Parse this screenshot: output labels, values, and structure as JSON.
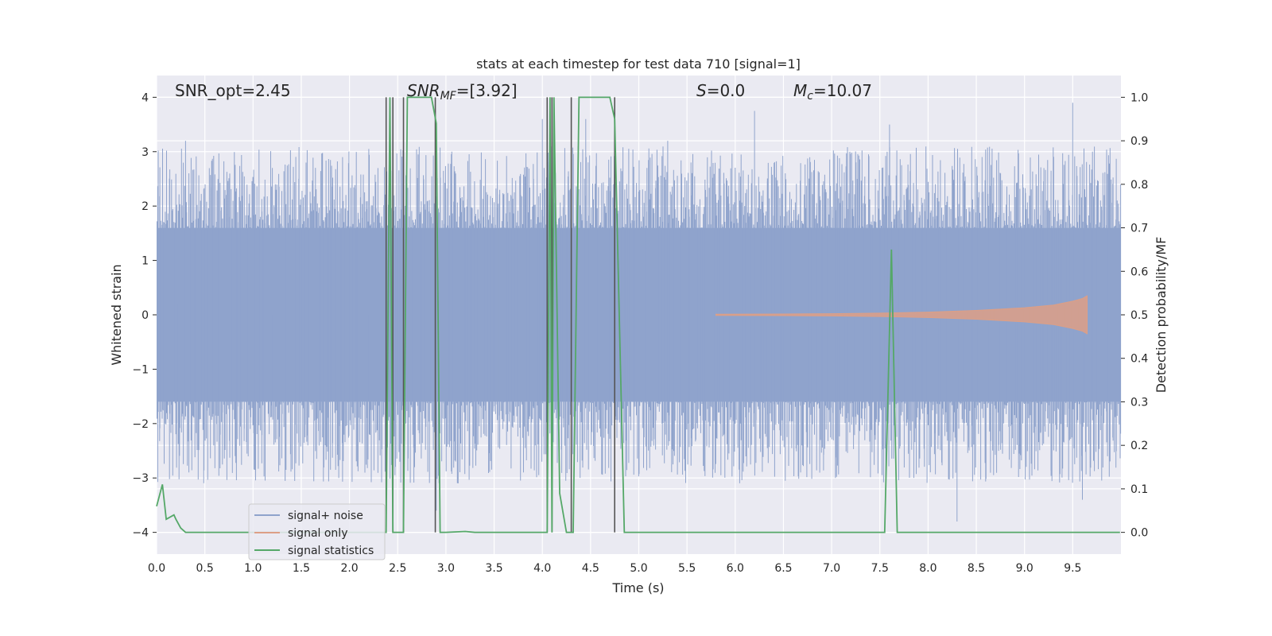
{
  "chart_data": {
    "type": "line",
    "title": "stats at each timestep for test data 710 [signal=1]",
    "xlabel": "Time (s)",
    "ylabel_left": "Whitened strain",
    "ylabel_right": "Detection probability/MF",
    "xlim": [
      0.0,
      10.0
    ],
    "ylim_left": [
      -4.4,
      4.4
    ],
    "ylim_right": [
      -0.05,
      1.05
    ],
    "x_ticks": [
      "0.0",
      "0.5",
      "1.0",
      "1.5",
      "2.0",
      "2.5",
      "3.0",
      "3.5",
      "4.0",
      "4.5",
      "5.0",
      "5.5",
      "6.0",
      "6.5",
      "7.0",
      "7.5",
      "8.0",
      "8.5",
      "9.0",
      "9.5"
    ],
    "y_ticks_left": [
      "−4",
      "−3",
      "−2",
      "−1",
      "0",
      "1",
      "2",
      "3",
      "4"
    ],
    "y_ticks_right": [
      "0.0",
      "0.1",
      "0.2",
      "0.3",
      "0.4",
      "0.5",
      "0.6",
      "0.7",
      "0.8",
      "0.9",
      "1.0"
    ],
    "grid": true,
    "legend_position": "lower-left",
    "annotations": {
      "snr_opt": "SNR_opt=2.45",
      "snr_mf_base": "SNR",
      "snr_mf_sub": "MF",
      "snr_mf_val": "=[3.92]",
      "s_base": "S",
      "s_val": "=0.0",
      "mc_base": "M",
      "mc_sub": "c",
      "mc_val": "=10.07"
    },
    "series": [
      {
        "name": "signal+ noise",
        "color": "#8fa3cc",
        "noise_band": [
          -1.6,
          1.6
        ],
        "notable_peaks": [
          [
            0.3,
            3.2
          ],
          [
            1.2,
            2.7
          ],
          [
            1.55,
            2.8
          ],
          [
            2.2,
            3.05
          ],
          [
            2.9,
            -3.6
          ],
          [
            4.0,
            3.6
          ],
          [
            4.45,
            3.6
          ],
          [
            4.75,
            3.3
          ],
          [
            5.3,
            3.2
          ],
          [
            6.2,
            3.75
          ],
          [
            7.6,
            3.5
          ],
          [
            8.3,
            -3.8
          ],
          [
            9.5,
            3.9
          ],
          [
            9.6,
            -3.4
          ]
        ]
      },
      {
        "name": "signal only",
        "color": "#dd9f86",
        "x": [
          5.8,
          6.5,
          7.0,
          7.5,
          8.0,
          8.5,
          9.0,
          9.3,
          9.5,
          9.6,
          9.65
        ],
        "amplitude": [
          0.01,
          0.015,
          0.02,
          0.03,
          0.05,
          0.08,
          0.13,
          0.18,
          0.25,
          0.3,
          0.35
        ]
      },
      {
        "name": "signal statistics",
        "color": "#55a868",
        "x": [
          0.0,
          0.06,
          0.1,
          0.18,
          0.2,
          0.25,
          0.3,
          0.4,
          1.0,
          2.0,
          2.35,
          2.38,
          2.42,
          2.45,
          2.48,
          2.52,
          2.56,
          2.6,
          2.64,
          2.85,
          2.9,
          2.94,
          3.0,
          3.2,
          3.3,
          4.05,
          4.08,
          4.1,
          4.12,
          4.18,
          4.25,
          4.3,
          4.32,
          4.38,
          4.4,
          4.55,
          4.7,
          4.75,
          4.85,
          4.9,
          7.55,
          7.62,
          7.68,
          7.7,
          9.99
        ],
        "y": [
          0.06,
          0.11,
          0.03,
          0.04,
          0.03,
          0.01,
          0.0,
          0.0,
          0.0,
          0.0,
          0.0,
          0.0,
          1.0,
          0.0,
          0.0,
          0.0,
          0.0,
          1.0,
          1.0,
          1.0,
          0.94,
          0.0,
          0.0,
          0.002,
          0.0,
          0.0,
          1.0,
          0.0,
          1.0,
          0.09,
          0.0,
          0.0,
          0.0,
          1.0,
          1.0,
          1.0,
          1.0,
          0.95,
          0.0,
          0.0,
          0.0,
          0.65,
          0.0,
          0.0,
          0.0
        ]
      }
    ],
    "vlines": [
      2.38,
      2.45,
      2.56,
      2.89,
      4.05,
      4.1,
      4.3,
      4.75
    ]
  }
}
